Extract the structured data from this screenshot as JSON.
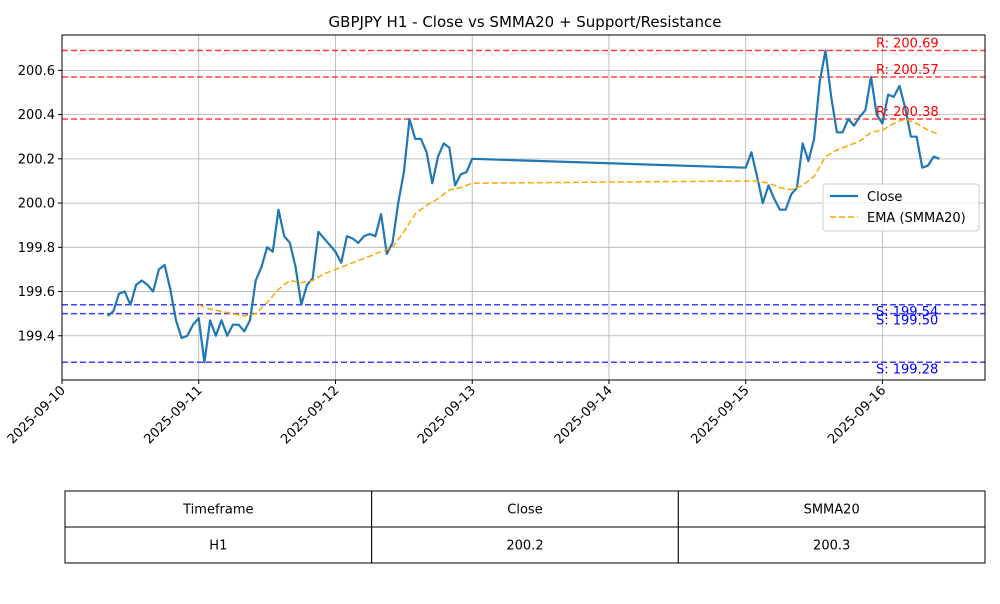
{
  "chart_data": {
    "type": "line",
    "title": "GBPJPY H1 - Close vs SMMA20 + Support/Resistance",
    "xlabel": "",
    "ylabel": "",
    "ylim": [
      199.2,
      200.76
    ],
    "xlim": [
      "2025-09-10 00:00",
      "2025-09-16 18:00"
    ],
    "grid": true,
    "legend_position": "center-right",
    "y_ticks": [
      "199.4",
      "199.6",
      "199.8",
      "200.0",
      "200.2",
      "200.4",
      "200.6"
    ],
    "x_ticks": [
      "2025-09-10",
      "2025-09-11",
      "2025-09-12",
      "2025-09-13",
      "2025-09-14",
      "2025-09-15",
      "2025-09-16"
    ],
    "series": [
      {
        "name": "Close",
        "color": "#1f77b4",
        "style": "solid",
        "points": [
          [
            "2025-09-10 08:00",
            199.49
          ],
          [
            "2025-09-10 09:00",
            199.51
          ],
          [
            "2025-09-10 10:00",
            199.59
          ],
          [
            "2025-09-10 11:00",
            199.6
          ],
          [
            "2025-09-10 12:00",
            199.54
          ],
          [
            "2025-09-10 13:00",
            199.63
          ],
          [
            "2025-09-10 14:00",
            199.65
          ],
          [
            "2025-09-10 15:00",
            199.63
          ],
          [
            "2025-09-10 16:00",
            199.6
          ],
          [
            "2025-09-10 17:00",
            199.7
          ],
          [
            "2025-09-10 18:00",
            199.72
          ],
          [
            "2025-09-10 19:00",
            199.61
          ],
          [
            "2025-09-10 20:00",
            199.47
          ],
          [
            "2025-09-10 21:00",
            199.39
          ],
          [
            "2025-09-10 22:00",
            199.4
          ],
          [
            "2025-09-10 23:00",
            199.45
          ],
          [
            "2025-09-11 00:00",
            199.48
          ],
          [
            "2025-09-11 01:00",
            199.28
          ],
          [
            "2025-09-11 02:00",
            199.47
          ],
          [
            "2025-09-11 03:00",
            199.4
          ],
          [
            "2025-09-11 04:00",
            199.47
          ],
          [
            "2025-09-11 05:00",
            199.4
          ],
          [
            "2025-09-11 06:00",
            199.45
          ],
          [
            "2025-09-11 07:00",
            199.45
          ],
          [
            "2025-09-11 08:00",
            199.42
          ],
          [
            "2025-09-11 09:00",
            199.47
          ],
          [
            "2025-09-11 10:00",
            199.65
          ],
          [
            "2025-09-11 11:00",
            199.71
          ],
          [
            "2025-09-11 12:00",
            199.8
          ],
          [
            "2025-09-11 13:00",
            199.78
          ],
          [
            "2025-09-11 14:00",
            199.97
          ],
          [
            "2025-09-11 15:00",
            199.85
          ],
          [
            "2025-09-11 16:00",
            199.82
          ],
          [
            "2025-09-11 17:00",
            199.71
          ],
          [
            "2025-09-11 18:00",
            199.54
          ],
          [
            "2025-09-11 19:00",
            199.63
          ],
          [
            "2025-09-11 20:00",
            199.66
          ],
          [
            "2025-09-11 21:00",
            199.87
          ],
          [
            "2025-09-12 00:00",
            199.78
          ],
          [
            "2025-09-12 01:00",
            199.73
          ],
          [
            "2025-09-12 02:00",
            199.85
          ],
          [
            "2025-09-12 03:00",
            199.84
          ],
          [
            "2025-09-12 04:00",
            199.82
          ],
          [
            "2025-09-12 05:00",
            199.85
          ],
          [
            "2025-09-12 06:00",
            199.86
          ],
          [
            "2025-09-12 07:00",
            199.85
          ],
          [
            "2025-09-12 08:00",
            199.95
          ],
          [
            "2025-09-12 09:00",
            199.77
          ],
          [
            "2025-09-12 10:00",
            199.82
          ],
          [
            "2025-09-12 11:00",
            200.0
          ],
          [
            "2025-09-12 12:00",
            200.14
          ],
          [
            "2025-09-12 13:00",
            200.38
          ],
          [
            "2025-09-12 14:00",
            200.29
          ],
          [
            "2025-09-12 15:00",
            200.29
          ],
          [
            "2025-09-12 16:00",
            200.23
          ],
          [
            "2025-09-12 17:00",
            200.09
          ],
          [
            "2025-09-12 18:00",
            200.21
          ],
          [
            "2025-09-12 19:00",
            200.27
          ],
          [
            "2025-09-12 20:00",
            200.25
          ],
          [
            "2025-09-12 21:00",
            200.08
          ],
          [
            "2025-09-12 22:00",
            200.13
          ],
          [
            "2025-09-12 23:00",
            200.14
          ],
          [
            "2025-09-13 00:00",
            200.2
          ],
          [
            "2025-09-15 00:00",
            200.16
          ],
          [
            "2025-09-15 01:00",
            200.23
          ],
          [
            "2025-09-15 02:00",
            200.12
          ],
          [
            "2025-09-15 03:00",
            200.0
          ],
          [
            "2025-09-15 04:00",
            200.08
          ],
          [
            "2025-09-15 05:00",
            200.02
          ],
          [
            "2025-09-15 06:00",
            199.97
          ],
          [
            "2025-09-15 07:00",
            199.97
          ],
          [
            "2025-09-15 08:00",
            200.04
          ],
          [
            "2025-09-15 09:00",
            200.07
          ],
          [
            "2025-09-15 10:00",
            200.27
          ],
          [
            "2025-09-15 11:00",
            200.19
          ],
          [
            "2025-09-15 12:00",
            200.29
          ],
          [
            "2025-09-15 13:00",
            200.55
          ],
          [
            "2025-09-15 14:00",
            200.69
          ],
          [
            "2025-09-15 15:00",
            200.48
          ],
          [
            "2025-09-15 16:00",
            200.32
          ],
          [
            "2025-09-15 17:00",
            200.32
          ],
          [
            "2025-09-15 18:00",
            200.38
          ],
          [
            "2025-09-15 19:00",
            200.35
          ],
          [
            "2025-09-15 20:00",
            200.39
          ],
          [
            "2025-09-15 21:00",
            200.42
          ],
          [
            "2025-09-15 22:00",
            200.57
          ],
          [
            "2025-09-15 23:00",
            200.4
          ],
          [
            "2025-09-16 00:00",
            200.36
          ],
          [
            "2025-09-16 01:00",
            200.49
          ],
          [
            "2025-09-16 02:00",
            200.48
          ],
          [
            "2025-09-16 03:00",
            200.53
          ],
          [
            "2025-09-16 04:00",
            200.43
          ],
          [
            "2025-09-16 05:00",
            200.3
          ],
          [
            "2025-09-16 06:00",
            200.3
          ],
          [
            "2025-09-16 07:00",
            200.16
          ],
          [
            "2025-09-16 08:00",
            200.17
          ],
          [
            "2025-09-16 09:00",
            200.21
          ],
          [
            "2025-09-16 10:00",
            200.2
          ]
        ]
      },
      {
        "name": "EMA (SMMA20)",
        "color": "#ffa500",
        "style": "dashed",
        "points": [
          [
            "2025-09-11 00:00",
            199.54
          ],
          [
            "2025-09-11 02:00",
            199.52
          ],
          [
            "2025-09-11 04:00",
            199.51
          ],
          [
            "2025-09-11 06:00",
            199.5
          ],
          [
            "2025-09-11 08:00",
            199.49
          ],
          [
            "2025-09-11 10:00",
            199.5
          ],
          [
            "2025-09-11 12:00",
            199.55
          ],
          [
            "2025-09-11 14:00",
            199.61
          ],
          [
            "2025-09-11 16:00",
            199.65
          ],
          [
            "2025-09-11 18:00",
            199.64
          ],
          [
            "2025-09-11 20:00",
            199.65
          ],
          [
            "2025-09-11 22:00",
            199.68
          ],
          [
            "2025-09-12 00:00",
            199.7
          ],
          [
            "2025-09-12 02:00",
            199.72
          ],
          [
            "2025-09-12 04:00",
            199.74
          ],
          [
            "2025-09-12 06:00",
            199.76
          ],
          [
            "2025-09-12 08:00",
            199.78
          ],
          [
            "2025-09-12 10:00",
            199.8
          ],
          [
            "2025-09-12 12:00",
            199.87
          ],
          [
            "2025-09-12 14:00",
            199.95
          ],
          [
            "2025-09-12 16:00",
            199.99
          ],
          [
            "2025-09-12 18:00",
            200.02
          ],
          [
            "2025-09-12 20:00",
            200.06
          ],
          [
            "2025-09-12 22:00",
            200.07
          ],
          [
            "2025-09-13 00:00",
            200.09
          ],
          [
            "2025-09-15 00:00",
            200.1
          ],
          [
            "2025-09-15 02:00",
            200.1
          ],
          [
            "2025-09-15 04:00",
            200.09
          ],
          [
            "2025-09-15 06:00",
            200.07
          ],
          [
            "2025-09-15 08:00",
            200.06
          ],
          [
            "2025-09-15 10:00",
            200.08
          ],
          [
            "2025-09-15 12:00",
            200.12
          ],
          [
            "2025-09-15 14:00",
            200.21
          ],
          [
            "2025-09-15 16:00",
            200.24
          ],
          [
            "2025-09-15 18:00",
            200.26
          ],
          [
            "2025-09-15 20:00",
            200.28
          ],
          [
            "2025-09-15 22:00",
            200.32
          ],
          [
            "2025-09-16 00:00",
            200.33
          ],
          [
            "2025-09-16 02:00",
            200.36
          ],
          [
            "2025-09-16 04:00",
            200.38
          ],
          [
            "2025-09-16 06:00",
            200.36
          ],
          [
            "2025-09-16 08:00",
            200.33
          ],
          [
            "2025-09-16 10:00",
            200.31
          ]
        ]
      }
    ],
    "resistance_levels": [
      {
        "label": "R: 200.69",
        "value": 200.69
      },
      {
        "label": "R: 200.57",
        "value": 200.57
      },
      {
        "label": "R: 200.38",
        "value": 200.38
      }
    ],
    "support_levels": [
      {
        "label": "S: 199.54",
        "value": 199.54
      },
      {
        "label": "S: 199.50",
        "value": 199.5
      },
      {
        "label": "S: 199.28",
        "value": 199.28
      }
    ],
    "colors": {
      "resistance": "#ff0000",
      "support": "#0000ff"
    },
    "table": {
      "headers": [
        "Timeframe",
        "Close",
        "SMMA20"
      ],
      "rows": [
        [
          "H1",
          "200.2",
          "200.3"
        ]
      ]
    }
  }
}
